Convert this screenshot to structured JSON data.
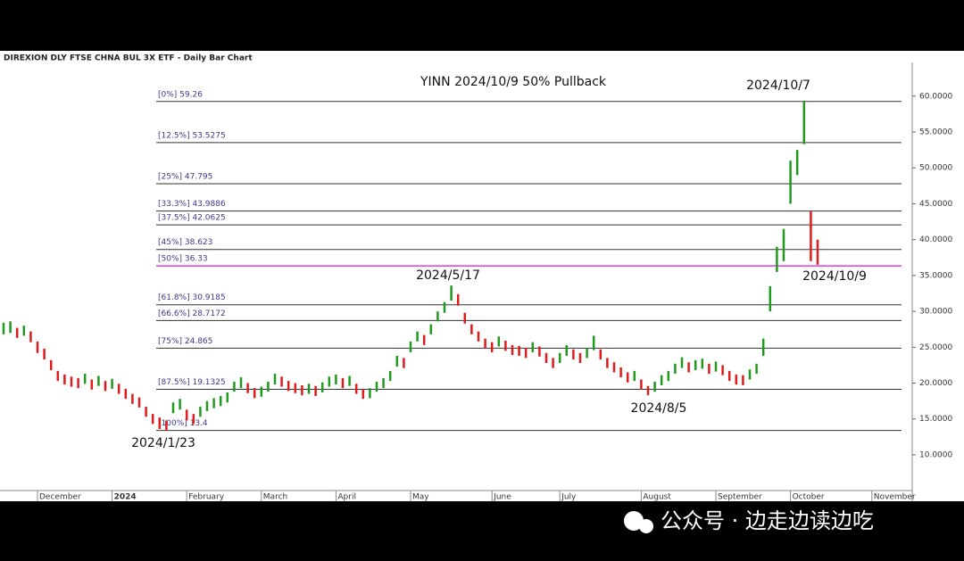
{
  "chart_data": {
    "type": "ohlc",
    "header": "DIREXION DLY FTSE CHNA BUL 3X ETF - Daily Bar Chart",
    "title": "YINN 2024/10/9 50% Pullback",
    "watermark": "公众号 · 边走边读边吃",
    "colors": {
      "up": "#1f9a1f",
      "down": "#e01b1b"
    },
    "ylim": [
      4.4,
      64.7
    ],
    "yticks": [
      {
        "value": 10,
        "label": "10.0000"
      },
      {
        "value": 15,
        "label": "15.0000"
      },
      {
        "value": 20,
        "label": "20.0000"
      },
      {
        "value": 25,
        "label": "25.0000"
      },
      {
        "value": 30,
        "label": "30.0000"
      },
      {
        "value": 35,
        "label": "35.0000"
      },
      {
        "value": 40,
        "label": "40.0000"
      },
      {
        "value": 45,
        "label": "45.0000"
      },
      {
        "value": 50,
        "label": "50.0000"
      },
      {
        "value": 55,
        "label": "55.0000"
      },
      {
        "value": 60,
        "label": "60.0000"
      }
    ],
    "categories": [
      null,
      null,
      null,
      null,
      null,
      "December",
      null,
      null,
      null,
      null,
      null,
      null,
      null,
      null,
      null,
      null,
      "2024",
      null,
      null,
      null,
      null,
      null,
      null,
      null,
      null,
      null,
      null,
      "February",
      null,
      null,
      null,
      null,
      null,
      null,
      null,
      null,
      null,
      null,
      "March",
      null,
      null,
      null,
      null,
      null,
      null,
      null,
      null,
      null,
      null,
      "April",
      null,
      null,
      null,
      null,
      null,
      null,
      null,
      null,
      null,
      null,
      "May",
      null,
      null,
      null,
      null,
      null,
      null,
      null,
      null,
      null,
      null,
      null,
      "June",
      null,
      null,
      null,
      null,
      null,
      null,
      null,
      null,
      null,
      "July",
      null,
      null,
      null,
      null,
      null,
      null,
      null,
      null,
      null,
      null,
      null,
      "August",
      null,
      null,
      null,
      null,
      null,
      null,
      null,
      null,
      null,
      null,
      "September",
      null,
      null,
      null,
      null,
      null,
      null,
      null,
      null,
      null,
      null,
      "October",
      null,
      null,
      null,
      null,
      null,
      null,
      null,
      null,
      null,
      null,
      null,
      "November",
      null,
      null,
      null,
      null,
      null
    ],
    "high": [
      28.4,
      28.6,
      27.7,
      28.0,
      27.2,
      25.8,
      24.8,
      23.2,
      21.7,
      21.2,
      20.9,
      20.7,
      21.3,
      20.5,
      21.0,
      20.3,
      20.6,
      19.9,
      19.2,
      18.5,
      18.0,
      16.7,
      15.7,
      15.2,
      14.8,
      17.3,
      17.8,
      16.3,
      15.7,
      16.7,
      17.5,
      17.9,
      18.2,
      18.7,
      20.2,
      20.8,
      20.0,
      19.3,
      19.5,
      20.2,
      21.3,
      20.9,
      20.3,
      20.0,
      19.7,
      19.9,
      19.6,
      20.1,
      20.9,
      21.2,
      20.7,
      21.0,
      19.9,
      19.2,
      19.3,
      20.2,
      20.7,
      21.7,
      23.8,
      23.5,
      25.8,
      27.2,
      26.7,
      28.2,
      30.0,
      31.3,
      33.6,
      32.4,
      29.8,
      28.2,
      27.2,
      26.2,
      25.7,
      26.5,
      25.9,
      25.3,
      25.2,
      24.9,
      25.7,
      25.1,
      24.2,
      23.5,
      24.2,
      25.3,
      24.7,
      24.2,
      24.9,
      26.6,
      24.7,
      23.5,
      22.9,
      22.2,
      21.5,
      21.7,
      20.5,
      19.6,
      20.2,
      21.1,
      21.7,
      22.7,
      23.6,
      22.9,
      23.2,
      23.4,
      22.7,
      23.0,
      22.5,
      21.7,
      21.2,
      21.1,
      21.9,
      22.7,
      26.2,
      33.5,
      39.0,
      41.5,
      51.0,
      52.5,
      59.26,
      43.99,
      40.0,
      null,
      null,
      null,
      null,
      null,
      null,
      null,
      null,
      null,
      null,
      null,
      null,
      null
    ],
    "low": [
      26.8,
      27.0,
      26.3,
      26.6,
      25.7,
      24.2,
      23.3,
      21.8,
      20.3,
      19.8,
      19.5,
      19.3,
      19.9,
      19.1,
      19.6,
      18.9,
      19.2,
      18.5,
      17.8,
      17.1,
      16.6,
      15.3,
      14.3,
      13.6,
      13.4,
      15.8,
      16.3,
      14.8,
      14.3,
      15.3,
      16.1,
      16.5,
      16.8,
      17.3,
      18.8,
      19.3,
      18.6,
      17.9,
      18.1,
      18.8,
      19.8,
      19.5,
      18.9,
      18.6,
      18.3,
      18.5,
      18.2,
      18.7,
      19.5,
      19.8,
      19.3,
      19.6,
      18.5,
      17.8,
      17.9,
      18.8,
      19.3,
      20.3,
      22.3,
      22.1,
      24.3,
      25.8,
      25.3,
      26.8,
      28.6,
      29.8,
      31.5,
      30.8,
      28.3,
      26.8,
      25.8,
      24.8,
      24.3,
      25.1,
      24.5,
      23.9,
      23.8,
      23.5,
      24.3,
      23.7,
      22.8,
      22.1,
      22.8,
      23.8,
      23.3,
      22.8,
      23.5,
      24.6,
      23.3,
      22.1,
      21.5,
      20.8,
      20.1,
      20.3,
      19.1,
      18.3,
      18.8,
      19.7,
      20.3,
      21.3,
      22.1,
      21.5,
      21.8,
      22.0,
      21.3,
      21.6,
      21.1,
      20.3,
      19.8,
      19.7,
      20.5,
      21.3,
      23.8,
      30.0,
      35.5,
      37.0,
      45.0,
      49.0,
      53.3,
      37.0,
      36.5,
      null,
      null,
      null,
      null,
      null,
      null,
      null,
      null,
      null,
      null,
      null,
      null,
      null
    ],
    "levels": [
      {
        "label": "[0%] 59.26",
        "value": 59.26,
        "color": "#333333"
      },
      {
        "label": "[12.5%] 53.5275",
        "value": 53.5275,
        "color": "#333333"
      },
      {
        "label": "[25%] 47.795",
        "value": 47.795,
        "color": "#333333"
      },
      {
        "label": "[33.3%] 43.9886",
        "value": 43.9886,
        "color": "#333333"
      },
      {
        "label": "[37.5%] 42.0625",
        "value": 42.0625,
        "color": "#333333"
      },
      {
        "label": "[45%] 38.623",
        "value": 38.623,
        "color": "#333333"
      },
      {
        "label": "[50%] 36.33",
        "value": 36.33,
        "color": "#e23be2"
      },
      {
        "label": "[61.8%] 30.9185",
        "value": 30.9185,
        "color": "#333333"
      },
      {
        "label": "[66.6%] 28.7172",
        "value": 28.7172,
        "color": "#333333"
      },
      {
        "label": "[75%] 24.865",
        "value": 24.865,
        "color": "#333333"
      },
      {
        "label": "[87.5%] 19.1325",
        "value": 19.1325,
        "color": "#333333"
      },
      {
        "label": "[100%] 13.4",
        "value": 13.4,
        "color": "#333333"
      }
    ],
    "annotations": [
      "2024/1/23",
      "2024/5/17",
      "2024/8/5",
      "2024/10/7",
      "2024/10/9"
    ]
  }
}
